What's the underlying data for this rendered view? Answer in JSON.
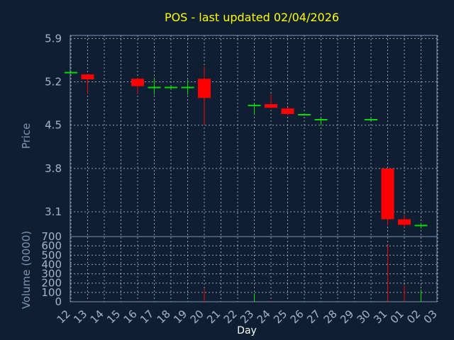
{
  "chart_data": {
    "type": "candlestick",
    "title": "POS - last updated 02/04/2026",
    "ylabel": "Price",
    "volume_label": "Volume (0000)",
    "xlabel": "Day",
    "ylim": [
      2.7,
      5.95
    ],
    "price_ticks": [
      "5.9",
      "5.2",
      "4.5",
      "3.8",
      "3.1"
    ],
    "price_tick_values": [
      5.9,
      5.2,
      4.5,
      3.8,
      3.1
    ],
    "volume_ylim": [
      0,
      700
    ],
    "volume_ticks": [
      "700",
      "600",
      "500",
      "400",
      "300",
      "200",
      "100",
      "0"
    ],
    "volume_tick_values": [
      700,
      600,
      500,
      400,
      300,
      200,
      100,
      0
    ],
    "x_ticks": [
      "12",
      "13",
      "14",
      "15",
      "16",
      "17",
      "18",
      "19",
      "20",
      "21",
      "22",
      "23",
      "24",
      "25",
      "26",
      "27",
      "28",
      "29",
      "30",
      "31",
      "01",
      "02",
      "03"
    ],
    "colors": {
      "up": "#00dd00",
      "down": "#ff0000",
      "title": "#ffff00"
    },
    "candles": [
      {
        "day": "12",
        "open": 5.36,
        "high": 5.37,
        "low": 5.35,
        "close": 5.36,
        "volume": 0
      },
      {
        "day": "13",
        "open": 5.32,
        "high": 5.33,
        "low": 5.0,
        "close": 5.24,
        "volume": 8
      },
      {
        "day": "16",
        "open": 5.25,
        "high": 5.26,
        "low": 5.0,
        "close": 5.13,
        "volume": 5
      },
      {
        "day": "17",
        "open": 5.12,
        "high": 5.25,
        "low": 4.99,
        "close": 5.12,
        "volume": 4
      },
      {
        "day": "18",
        "open": 5.12,
        "high": 5.13,
        "low": 5.08,
        "close": 5.12,
        "volume": 3
      },
      {
        "day": "19",
        "open": 5.12,
        "high": 5.23,
        "low": 4.99,
        "close": 5.12,
        "volume": 4
      },
      {
        "day": "20",
        "open": 5.25,
        "high": 5.45,
        "low": 4.5,
        "close": 4.94,
        "volume": 140
      },
      {
        "day": "23",
        "open": 4.83,
        "high": 4.84,
        "low": 4.67,
        "close": 4.83,
        "volume": 90
      },
      {
        "day": "24",
        "open": 4.84,
        "high": 5.0,
        "low": 4.77,
        "close": 4.78,
        "volume": 10
      },
      {
        "day": "25",
        "open": 4.77,
        "high": 4.78,
        "low": 4.67,
        "close": 4.68,
        "volume": 8
      },
      {
        "day": "26",
        "open": 4.68,
        "high": 4.69,
        "low": 4.67,
        "close": 4.68,
        "volume": 5
      },
      {
        "day": "27",
        "open": 4.6,
        "high": 4.61,
        "low": 4.5,
        "close": 4.6,
        "volume": 6
      },
      {
        "day": "30",
        "open": 4.6,
        "high": 4.61,
        "low": 4.59,
        "close": 4.6,
        "volume": 4
      },
      {
        "day": "31",
        "open": 3.8,
        "high": 3.8,
        "low": 2.88,
        "close": 2.98,
        "volume": 610
      },
      {
        "day": "01",
        "open": 2.98,
        "high": 3.05,
        "low": 2.85,
        "close": 2.89,
        "volume": 175
      },
      {
        "day": "02",
        "open": 2.88,
        "high": 2.92,
        "low": 2.85,
        "close": 2.89,
        "volume": 130
      }
    ]
  }
}
